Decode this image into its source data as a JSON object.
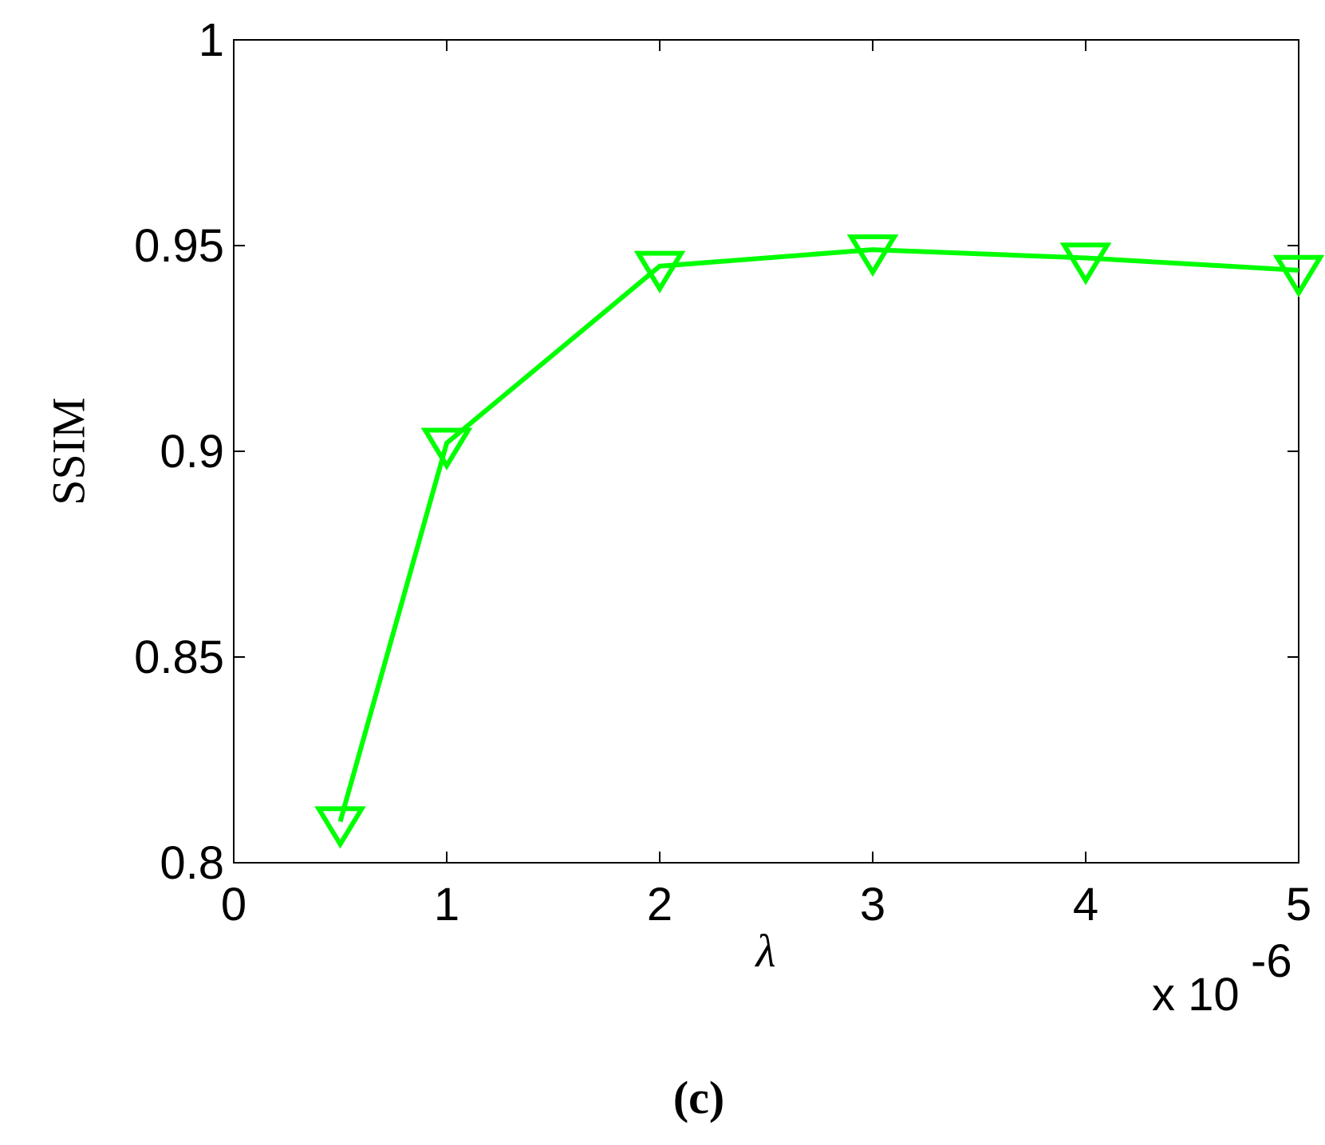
{
  "chart_data": {
    "type": "line",
    "xlabel": "λ",
    "ylabel": "SSIM",
    "x_multiplier": "x 10",
    "x_multiplier_exponent": "-6",
    "caption": "(c)",
    "x": [
      0.5,
      1,
      2,
      3,
      4,
      5
    ],
    "series": [
      {
        "color": "#00ff00",
        "marker": "triangle-down",
        "values": [
          0.81,
          0.902,
          0.945,
          0.949,
          0.947,
          0.944
        ]
      }
    ],
    "xlim": [
      0,
      5
    ],
    "xticks": [
      0,
      1,
      2,
      3,
      4,
      5
    ],
    "ylim": [
      0.8,
      1
    ],
    "yticks": [
      0.8,
      0.85,
      0.9,
      0.95,
      1
    ],
    "grid": false
  }
}
